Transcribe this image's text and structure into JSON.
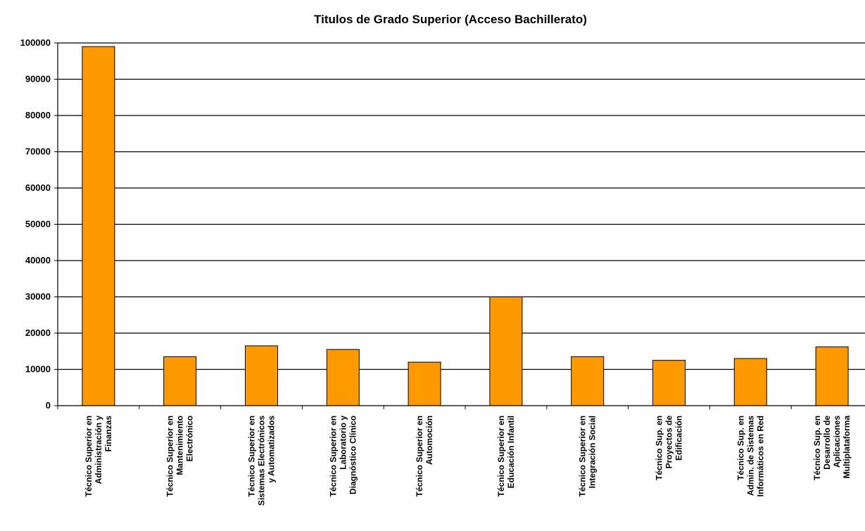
{
  "chart_data": {
    "type": "bar",
    "title": "Titulos de Grado Superior (Acceso Bachillerato)",
    "xlabel": "",
    "ylabel": "",
    "ylim": [
      0,
      100000
    ],
    "y_ticks": [
      0,
      10000,
      20000,
      30000,
      40000,
      50000,
      60000,
      70000,
      80000,
      90000,
      100000
    ],
    "grid": true,
    "legend": "none",
    "bar_color": "#FF9900",
    "categories": [
      [
        "Técnico Superior en",
        "Administración y",
        "Finanzas"
      ],
      [
        "Técnico Superior en",
        "Mantenimiento",
        "Electrónico"
      ],
      [
        "Técnico Superior en",
        "Sistemas Electrónicos",
        "y Automatizados"
      ],
      [
        "Técnico Superior en",
        "Laboratorio y",
        "Diagnóstico Clínico"
      ],
      [
        "Técnico Superior en",
        "Automoción"
      ],
      [
        "Técnico Superior en",
        "Educación Infantil"
      ],
      [
        "Técnico Superior en",
        "Integración Social"
      ],
      [
        "Técnico Sup. en",
        "Proyectos de",
        "Edificación"
      ],
      [
        "Técnico Sup. en",
        "Admin. de Sistemas",
        "Informáticos en Red"
      ],
      [
        "Técnico Sup. en",
        "Desarrollo de",
        "Aplicaciones",
        "Multiplataforma"
      ]
    ],
    "values": [
      99000,
      13500,
      16500,
      15500,
      12000,
      30000,
      13500,
      12500,
      13000,
      16200
    ]
  }
}
